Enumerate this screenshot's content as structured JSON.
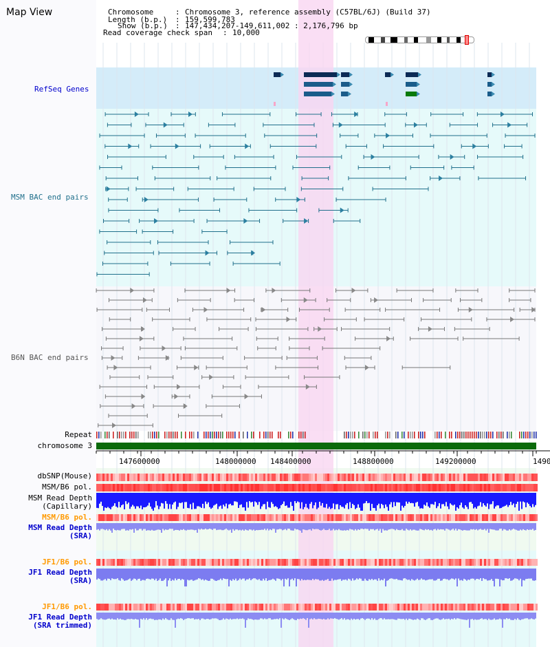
{
  "title": "Map View",
  "header": {
    "chromosome_key": "Chromosome",
    "chromosome_value": "Chromosome 3, reference assembly (C57BL/6J) (Build 37)",
    "length_key": "Length (b.p.)",
    "length_value": "159,599,783",
    "show_key": "Show (b.p.)",
    "show_value": "147,434,207-149,611,002 : 2,176,796 bp",
    "coverage_key": "Read coverage check span",
    "coverage_value": "10,000"
  },
  "tracks": {
    "refseq": "RefSeq Genes",
    "msm_bac": "MSM BAC end pairs",
    "b6n_bac": "B6N BAC end pairs",
    "repeat": "Repeat",
    "chromosome": "chromosome 3",
    "dbsnp": "dbSNP(Mouse)",
    "msm_pol": "MSM/B6 pol.",
    "msm_depth_cap_1": "MSM Read Depth",
    "msm_depth_cap_2": "(Capillary)",
    "msm_pol2": "MSM/B6 pol.",
    "msm_depth_sra_1": "MSM Read Depth",
    "msm_depth_sra_2": "(SRA)",
    "jf1_pol": "JF1/B6 pol.",
    "jf1_depth_1": "JF1 Read Depth",
    "jf1_depth_2": "(SRA)",
    "jf1_pol2": "JF1/B6 pol.",
    "jf1_trim_1": "JF1 Read Depth",
    "jf1_trim_2": "(SRA trimmed)"
  },
  "axis": {
    "ticks": [
      "147600000",
      "148000000",
      "148400000",
      "148800000",
      "149200000",
      "1490"
    ]
  },
  "highlight": {
    "start_bp": 148400000,
    "end_bp": 148480000
  },
  "colors": {
    "refseq_bg": "#d4ecf9",
    "msm_bg": "#e6fafa",
    "b6n_bg": "#f7f7fb",
    "highlight": "#f9d6f1",
    "chrom_green": "#0b6a0b",
    "msm_feature": "#1f6f8b",
    "b6n_feature": "#777777",
    "depth_blue": "#1a1aff",
    "depth_light": "#8c8cf2",
    "pol_red": "#ff4a4a",
    "label_blue": "#0000cc",
    "label_teal": "#1f6f8b",
    "label_orange": "#ff9900"
  }
}
